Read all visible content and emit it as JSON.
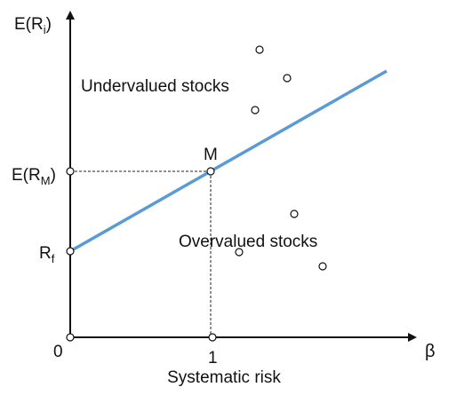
{
  "chart_data": {
    "type": "scatter",
    "axes": {
      "y_label": {
        "base": "E(R",
        "sub": "i",
        "close": ")"
      },
      "x_label": "β",
      "x_title": "Systematic risk",
      "origin_label": "0",
      "x_tick_label": "1",
      "y_tick_market": {
        "base": "E(R",
        "sub": "M",
        "close": ")"
      },
      "y_tick_riskfree": {
        "base": "R",
        "sub": "f"
      }
    },
    "sml": {
      "label": "M",
      "color": "#5b9bd5"
    },
    "regions": {
      "upper": "Undervalued stocks",
      "lower": "Overvalued stocks"
    }
  }
}
